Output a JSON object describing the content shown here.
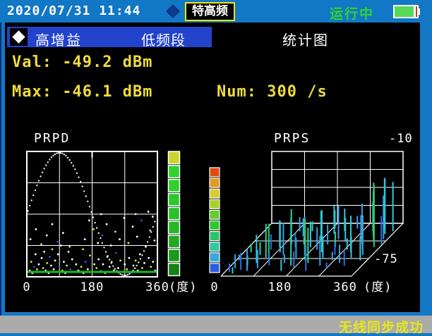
{
  "top_bar": {
    "datetime": "2020/07/31  11:44",
    "mode_badge": "特高频",
    "status": "运行中",
    "battery_level_percent": 85
  },
  "header": {
    "gain": "高增益",
    "band": "低频段",
    "view": "统计图"
  },
  "readings": {
    "val_line": "Val: -49.2 dBm",
    "max_line": "Max: -46.1 dBm",
    "num_line": "Num: 300 /s"
  },
  "status_bar": {
    "message": "无线同步成功"
  },
  "colors": {
    "screen_blue": "#1277c5",
    "header_blue": "#2343cd",
    "value_yellow": "#f0dc3a",
    "running_green": "#2fd42f",
    "sync_yellow": "#e6e61e",
    "badge_border_yellow": "#f5e400",
    "baseline_green": "#1fb51f",
    "grid_white": "#ffffff",
    "status_bar_gray": "#ababab"
  },
  "chart_data": [
    {
      "type": "scatter",
      "name": "PRPD",
      "title": "PRPD",
      "xlabel": "(度)",
      "xticks": [
        0,
        180,
        360
      ],
      "xlim": [
        0,
        360
      ],
      "ylim_dbm": [
        -75,
        -10
      ],
      "grid": {
        "cols": 4,
        "rows": 4,
        "on": true
      },
      "sine_overlay": {
        "visible": true,
        "style": "dotted",
        "period_deg": 360,
        "phase_deg": 0
      },
      "baseline_green_line": true,
      "point_colors": [
        "#ffffff",
        "#e8e832",
        "#3b52dd"
      ],
      "colorbar": [
        "#ccd42c",
        "#2ed42e",
        "#2dd02d",
        "#2bc92b",
        "#29c229",
        "#26b826",
        "#21a921",
        "#1b991b",
        "#148414"
      ],
      "points": [
        [
          8,
          0.05,
          0
        ],
        [
          12,
          0.12,
          1
        ],
        [
          15,
          0.03,
          0
        ],
        [
          20,
          0.08,
          2
        ],
        [
          24,
          0.18,
          0
        ],
        [
          28,
          0.06,
          1
        ],
        [
          33,
          0.1,
          0
        ],
        [
          37,
          0.04,
          2
        ],
        [
          41,
          0.15,
          0
        ],
        [
          45,
          0.07,
          1
        ],
        [
          48,
          0.2,
          0
        ],
        [
          52,
          0.05,
          0
        ],
        [
          56,
          0.11,
          1
        ],
        [
          60,
          0.03,
          0
        ],
        [
          63,
          0.16,
          2
        ],
        [
          67,
          0.09,
          0
        ],
        [
          70,
          0.22,
          1
        ],
        [
          74,
          0.06,
          0
        ],
        [
          78,
          0.13,
          0
        ],
        [
          82,
          0.04,
          1
        ],
        [
          86,
          0.18,
          0
        ],
        [
          90,
          0.08,
          2
        ],
        [
          94,
          0.25,
          0
        ],
        [
          98,
          0.05,
          1
        ],
        [
          102,
          0.12,
          0
        ],
        [
          106,
          0.03,
          0
        ],
        [
          110,
          0.09,
          1
        ],
        [
          115,
          0.2,
          0
        ],
        [
          120,
          0.06,
          2
        ],
        [
          125,
          0.14,
          0
        ],
        [
          130,
          0.04,
          1
        ],
        [
          136,
          0.1,
          0
        ],
        [
          142,
          0.05,
          0
        ],
        [
          150,
          0.08,
          1
        ],
        [
          156,
          0.03,
          0
        ],
        [
          162,
          0.12,
          2
        ],
        [
          168,
          0.06,
          0
        ],
        [
          174,
          0.17,
          1
        ],
        [
          180,
          0.04,
          0
        ],
        [
          186,
          0.1,
          0
        ],
        [
          192,
          0.07,
          1
        ],
        [
          198,
          0.14,
          0
        ],
        [
          204,
          0.05,
          2
        ],
        [
          210,
          0.1,
          0
        ],
        [
          216,
          0.03,
          1
        ],
        [
          222,
          0.16,
          0
        ],
        [
          228,
          0.08,
          0
        ],
        [
          234,
          0.12,
          1
        ],
        [
          240,
          0.05,
          0
        ],
        [
          246,
          0.19,
          2
        ],
        [
          252,
          0.07,
          0
        ],
        [
          258,
          0.13,
          1
        ],
        [
          264,
          0.04,
          0
        ],
        [
          270,
          0.1,
          0
        ],
        [
          276,
          0.06,
          1
        ],
        [
          282,
          0.15,
          0
        ],
        [
          288,
          0.03,
          2
        ],
        [
          294,
          0.09,
          0
        ],
        [
          300,
          0.13,
          1
        ],
        [
          306,
          0.05,
          0
        ],
        [
          312,
          0.18,
          0
        ],
        [
          318,
          0.07,
          1
        ],
        [
          324,
          0.11,
          0
        ],
        [
          330,
          0.04,
          2
        ],
        [
          336,
          0.15,
          0
        ],
        [
          342,
          0.08,
          1
        ],
        [
          348,
          0.12,
          0
        ],
        [
          354,
          0.05,
          0
        ],
        [
          10,
          0.3,
          0
        ],
        [
          25,
          0.38,
          0
        ],
        [
          40,
          0.26,
          1
        ],
        [
          55,
          0.33,
          0
        ],
        [
          70,
          0.42,
          0
        ],
        [
          85,
          0.28,
          2
        ],
        [
          100,
          0.35,
          0
        ],
        [
          118,
          0.24,
          1
        ],
        [
          155,
          0.22,
          1
        ],
        [
          160,
          0.3,
          0
        ],
        [
          172,
          0.45,
          0
        ],
        [
          184,
          0.38,
          1
        ],
        [
          196,
          0.27,
          0
        ],
        [
          205,
          0.5,
          0
        ],
        [
          208,
          0.33,
          2
        ],
        [
          220,
          0.42,
          0
        ],
        [
          232,
          0.25,
          0
        ],
        [
          244,
          0.36,
          1
        ],
        [
          256,
          0.3,
          0
        ],
        [
          268,
          0.47,
          0
        ],
        [
          280,
          0.27,
          1
        ],
        [
          292,
          0.4,
          0
        ],
        [
          300,
          0.5,
          0
        ],
        [
          304,
          0.32,
          0
        ],
        [
          316,
          0.45,
          2
        ],
        [
          328,
          0.24,
          0
        ],
        [
          335,
          0.52,
          0
        ],
        [
          340,
          0.37,
          1
        ],
        [
          347,
          0.48,
          0
        ],
        [
          352,
          0.29,
          0
        ]
      ]
    },
    {
      "type": "3d-spikes",
      "name": "PRPS",
      "title": "PRPS",
      "xlabel": "(度)",
      "xticks": [
        0,
        180,
        360
      ],
      "xlim": [
        0,
        360
      ],
      "scale_max_label": "-10",
      "scale_min_label": "-75",
      "grid": {
        "cols": 4,
        "rows": 4,
        "depth_lines": 2
      },
      "spike_colors": [
        "#2e6de6",
        "#39a1e8",
        "#2fc9d8",
        "#2bd3a0",
        "#35c96a"
      ],
      "colorbar": [
        "#e04a12",
        "#e39a1f",
        "#d8cc2e",
        "#a8d02c",
        "#63cc2e",
        "#2fc82f",
        "#2cc468",
        "#2fc8a2",
        "#38a8e0",
        "#2b5ce0"
      ],
      "spikes": [
        [
          12,
          0.08,
          12,
          0
        ],
        [
          18,
          0.15,
          20,
          1
        ],
        [
          25,
          0.05,
          9,
          2
        ],
        [
          30,
          0.3,
          16,
          1
        ],
        [
          38,
          0.12,
          24,
          0
        ],
        [
          45,
          0.2,
          14,
          2
        ],
        [
          52,
          0.4,
          18,
          3
        ],
        [
          58,
          0.1,
          30,
          1
        ],
        [
          63,
          0.25,
          40,
          2
        ],
        [
          68,
          0.5,
          22,
          0
        ],
        [
          75,
          0.35,
          48,
          3
        ],
        [
          80,
          0.15,
          26,
          1
        ],
        [
          85,
          0.55,
          38,
          2
        ],
        [
          90,
          0.3,
          52,
          4
        ],
        [
          95,
          0.7,
          30,
          1
        ],
        [
          100,
          0.45,
          44,
          2
        ],
        [
          105,
          0.2,
          18,
          0
        ],
        [
          110,
          0.6,
          50,
          3
        ],
        [
          116,
          0.4,
          34,
          1
        ],
        [
          122,
          0.75,
          26,
          2
        ],
        [
          128,
          0.55,
          20,
          0
        ],
        [
          140,
          0.25,
          12,
          1
        ],
        [
          152,
          0.1,
          16,
          2
        ],
        [
          158,
          0.35,
          28,
          1
        ],
        [
          165,
          0.2,
          46,
          3
        ],
        [
          170,
          0.55,
          36,
          2
        ],
        [
          175,
          0.4,
          54,
          1
        ],
        [
          180,
          0.15,
          24,
          0
        ],
        [
          185,
          0.65,
          44,
          2
        ],
        [
          190,
          0.3,
          58,
          4
        ],
        [
          195,
          0.5,
          32,
          1
        ],
        [
          200,
          0.8,
          40,
          2
        ],
        [
          205,
          0.25,
          50,
          3
        ],
        [
          210,
          0.6,
          28,
          1
        ],
        [
          215,
          0.45,
          60,
          2
        ],
        [
          220,
          0.1,
          36,
          0
        ],
        [
          226,
          0.7,
          48,
          1
        ],
        [
          232,
          0.35,
          30,
          2
        ],
        [
          238,
          0.55,
          22,
          3
        ],
        [
          245,
          0.2,
          42,
          1
        ],
        [
          252,
          0.65,
          34,
          2
        ],
        [
          258,
          0.4,
          18,
          0
        ],
        [
          265,
          0.3,
          12,
          1
        ],
        [
          278,
          0.5,
          16,
          2
        ],
        [
          288,
          0.7,
          34,
          1
        ],
        [
          295,
          0.45,
          52,
          2
        ],
        [
          300,
          0.85,
          42,
          3
        ],
        [
          305,
          0.6,
          58,
          1
        ],
        [
          310,
          0.35,
          30,
          2
        ],
        [
          315,
          0.75,
          64,
          4
        ],
        [
          320,
          0.5,
          46,
          1
        ],
        [
          325,
          0.9,
          72,
          2
        ],
        [
          330,
          0.65,
          84,
          3
        ],
        [
          335,
          0.4,
          56,
          1
        ],
        [
          340,
          0.8,
          78,
          2
        ],
        [
          345,
          0.55,
          88,
          4
        ],
        [
          350,
          0.7,
          62,
          1
        ],
        [
          355,
          0.85,
          70,
          2
        ],
        [
          358,
          0.6,
          40,
          0
        ],
        [
          60,
          0.8,
          16,
          1
        ],
        [
          145,
          0.6,
          10,
          2
        ],
        [
          270,
          0.15,
          8,
          0
        ],
        [
          20,
          0.45,
          12,
          3
        ],
        [
          98,
          0.85,
          20,
          1
        ],
        [
          188,
          0.9,
          26,
          2
        ],
        [
          250,
          0.9,
          18,
          1
        ],
        [
          312,
          0.2,
          22,
          0
        ],
        [
          342,
          0.3,
          34,
          2
        ],
        [
          8,
          0.3,
          8,
          1
        ],
        [
          133,
          0.85,
          14,
          3
        ],
        [
          222,
          0.85,
          32,
          2
        ],
        [
          292,
          0.25,
          26,
          1
        ]
      ]
    }
  ]
}
